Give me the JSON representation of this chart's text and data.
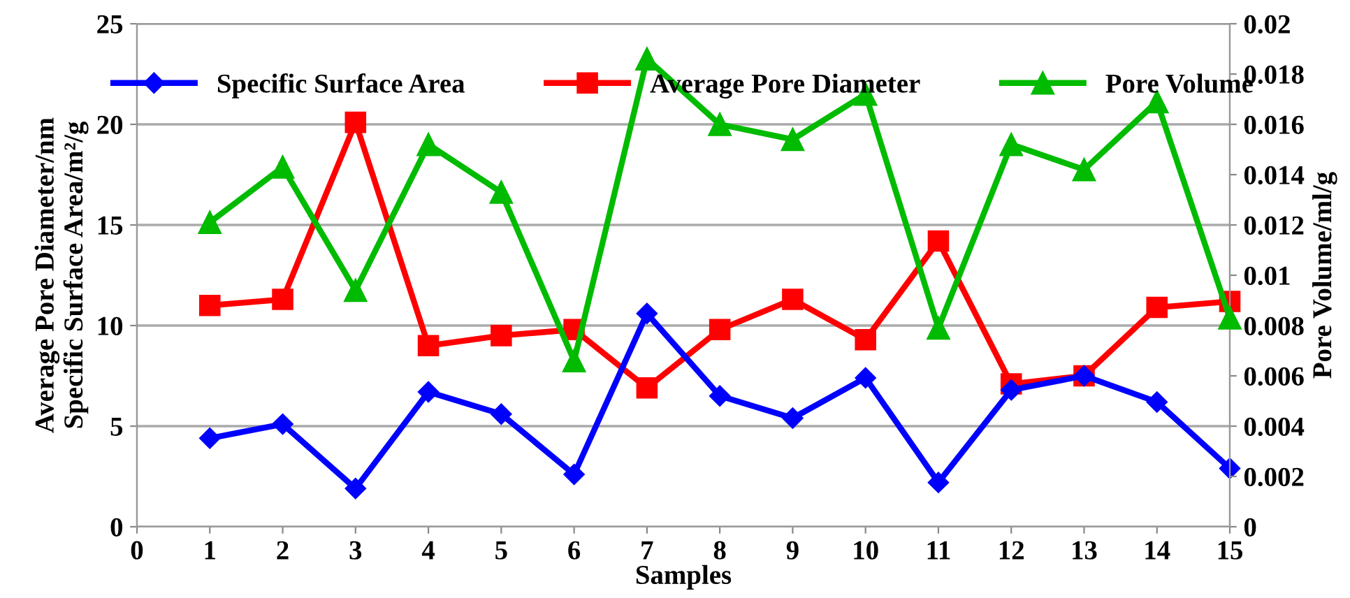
{
  "chart_data": {
    "type": "line",
    "xlabel": "Samples",
    "ylabel": "Average Pore Diameter/nm\nSpecific Surface Area/m²/g",
    "y2label": "Pore Volume/ml/g",
    "x": [
      1,
      2,
      3,
      4,
      5,
      6,
      7,
      8,
      9,
      10,
      11,
      12,
      13,
      14,
      15
    ],
    "series": [
      {
        "name": "Specific Surface Area",
        "color": "#0000ff",
        "marker": "diamond",
        "values": [
          4.4,
          5.1,
          1.9,
          6.7,
          5.6,
          2.6,
          10.6,
          6.5,
          5.4,
          7.4,
          2.2,
          6.8,
          7.5,
          6.2,
          2.9
        ]
      },
      {
        "name": "Average Pore Diameter",
        "color": "#ff0000",
        "marker": "square",
        "values": [
          11.0,
          11.3,
          20.1,
          9.0,
          9.5,
          9.8,
          6.9,
          9.8,
          11.3,
          9.3,
          14.2,
          7.1,
          7.5,
          10.9,
          11.2
        ]
      },
      {
        "name": "Pore Volume",
        "color": "#00bb00",
        "marker": "triangle",
        "axis": "y2",
        "values": [
          0.0121,
          0.0143,
          0.0094,
          0.0152,
          0.0133,
          0.0066,
          0.0186,
          0.016,
          0.0154,
          0.0172,
          0.0079,
          0.0152,
          0.0142,
          0.0169,
          0.0083
        ]
      }
    ],
    "xlim": [
      0,
      15
    ],
    "xticks": [
      0,
      1,
      2,
      3,
      4,
      5,
      6,
      7,
      8,
      9,
      10,
      11,
      12,
      13,
      14,
      15
    ],
    "ylim": [
      0,
      25
    ],
    "yticks": [
      0,
      5,
      10,
      15,
      20,
      25
    ],
    "y2lim": [
      0,
      0.02
    ],
    "y2ticks": [
      0,
      0.002,
      0.004,
      0.006,
      0.008,
      0.01,
      0.012,
      0.014,
      0.016,
      0.018,
      0.02
    ],
    "grid": "y",
    "legend": "top",
    "line_style": "solid"
  }
}
